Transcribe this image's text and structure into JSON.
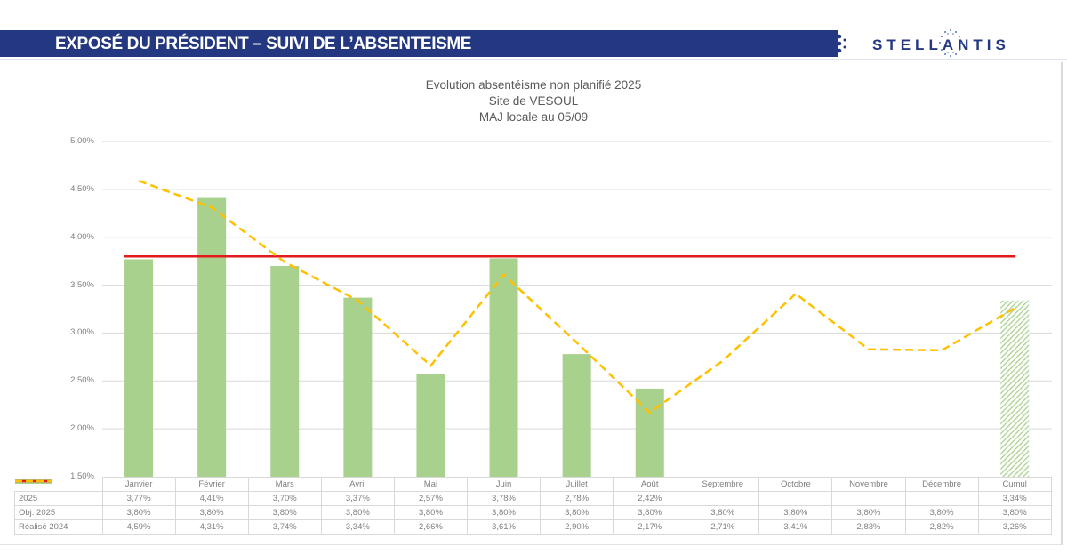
{
  "header": {
    "title": "EXPOSÉ DU PRÉSIDENT – SUIVI DE L’ABSENTEISME",
    "logo_text": "STELLANTIS",
    "banner_color": "#243882"
  },
  "chart_titles": {
    "line1": "Evolution absentéisme non planifié 2025",
    "line2": "Site de VESOUL",
    "line3": "MAJ locale au 05/09"
  },
  "y_ticks": [
    "5,00%",
    "4,50%",
    "4,00%",
    "3,50%",
    "3,00%",
    "2,50%",
    "2,00%",
    "1,50%"
  ],
  "table": {
    "categories": [
      "Janvier",
      "Février",
      "Mars",
      "Avril",
      "Mai",
      "Juin",
      "Juillet",
      "Août",
      "Septembre",
      "Octobre",
      "Novembre",
      "Décembre",
      "Cumul"
    ],
    "rows": [
      {
        "label": "2025",
        "values": [
          "3,77%",
          "4,41%",
          "3,70%",
          "3,37%",
          "2,57%",
          "3,78%",
          "2,78%",
          "2,42%",
          "",
          "",
          "",
          "",
          "3,34%"
        ]
      },
      {
        "label": "Obj. 2025",
        "values": [
          "3,80%",
          "3,80%",
          "3,80%",
          "3,80%",
          "3,80%",
          "3,80%",
          "3,80%",
          "3,80%",
          "3,80%",
          "3,80%",
          "3,80%",
          "3,80%",
          "3,80%"
        ]
      },
      {
        "label": "Réalisé 2024",
        "values": [
          "4,59%",
          "4,31%",
          "3,74%",
          "3,34%",
          "2,66%",
          "3,61%",
          "2,90%",
          "2,17%",
          "2,71%",
          "3,41%",
          "2,83%",
          "2,82%",
          "3,26%"
        ]
      }
    ]
  },
  "chart_data": {
    "type": "bar",
    "title": "Evolution absentéisme non planifié 2025 — Site de VESOUL — MAJ locale au 05/09",
    "xlabel": "",
    "ylabel": "",
    "ylim": [
      1.5,
      5.0
    ],
    "y_tick_step": 0.5,
    "grid": true,
    "legend_position": "data-table",
    "categories": [
      "Janvier",
      "Février",
      "Mars",
      "Avril",
      "Mai",
      "Juin",
      "Juillet",
      "Août",
      "Septembre",
      "Octobre",
      "Novembre",
      "Décembre",
      "Cumul"
    ],
    "series": [
      {
        "name": "2025",
        "type": "bar",
        "color": "#a9d18e",
        "values": [
          3.77,
          4.41,
          3.7,
          3.37,
          2.57,
          3.78,
          2.78,
          2.42,
          null,
          null,
          null,
          null,
          3.34
        ],
        "note": "Cumul bar hatched"
      },
      {
        "name": "Obj. 2025",
        "type": "line",
        "color": "#e31a1c",
        "style": "solid",
        "values": [
          3.8,
          3.8,
          3.8,
          3.8,
          3.8,
          3.8,
          3.8,
          3.8,
          3.8,
          3.8,
          3.8,
          3.8,
          3.8
        ]
      },
      {
        "name": "Réalisé 2024",
        "type": "line",
        "color": "#ffc000",
        "style": "dashed",
        "values": [
          4.59,
          4.31,
          3.74,
          3.34,
          2.66,
          3.61,
          2.9,
          2.17,
          2.71,
          3.41,
          2.83,
          2.82,
          3.26
        ]
      }
    ]
  }
}
